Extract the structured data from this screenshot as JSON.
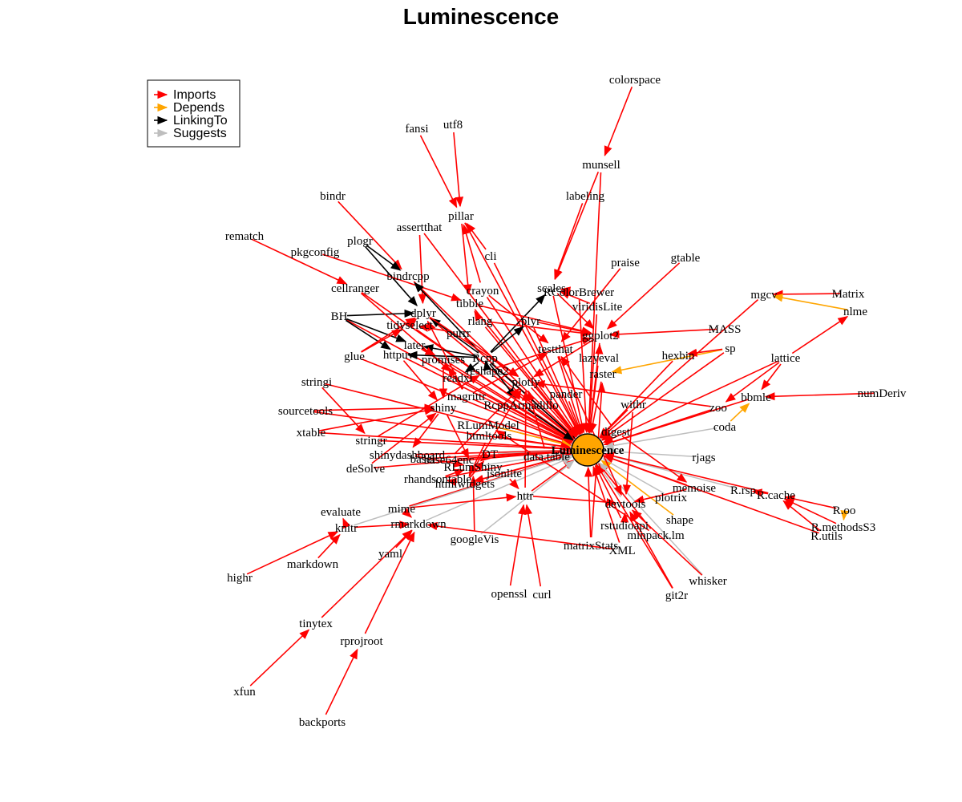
{
  "title": "Luminescence",
  "center": "Luminescence",
  "legend": [
    {
      "label": "Imports",
      "color": "#ff0000"
    },
    {
      "label": "Depends",
      "color": "#ffa500"
    },
    {
      "label": "LinkingTo",
      "color": "#000000"
    },
    {
      "label": "Suggests",
      "color": "#bebebe"
    }
  ],
  "nodes": [
    "colorspace",
    "munsell",
    "labeling",
    "fansi",
    "utf8",
    "pillar",
    "bindr",
    "assertthat",
    "cli",
    "rematch",
    "plogr",
    "pkgconfig",
    "bindrcpp",
    "praise",
    "gtable",
    "cellranger",
    "crayon",
    "scales",
    "RColorBrewer",
    "viridisLite",
    "tibble",
    "dplyr",
    "mgcv",
    "Matrix",
    "BH",
    "tidyselect",
    "rlang",
    "plyr",
    "ggplot2",
    "MASS",
    "nlme",
    "purrr",
    "glue",
    "httpuv",
    "later",
    "testthat",
    "sp",
    "lattice",
    "hexbin",
    "promises",
    "Rcpp",
    "lazyeval",
    "raster",
    "stringi",
    "readxl",
    "reshape2",
    "plotly",
    "pander",
    "bbmle",
    "numDeriv",
    "magrittr",
    "sourcetools",
    "shiny",
    "RcppArmadillo",
    "withr",
    "zoo",
    "xtable",
    "RLumModel",
    "htmltools",
    "digest",
    "coda",
    "stringr",
    "shinydashboard",
    "DT",
    "basel",
    "base64enc",
    "data.table",
    "rjags",
    "deSolve",
    "RLumShiny",
    "jsonlite",
    "rhandsontable",
    "htmlwidgets",
    "memoise",
    "R.rsp",
    "R.cache",
    "httr",
    "plotrix",
    "evaluate",
    "devtools",
    "mime",
    "R.oo",
    "knitr",
    "rmarkdown",
    "shape",
    "R.methodsS3",
    "R.utils",
    "rstudioapi",
    "minpack.lm",
    "googleVis",
    "yaml",
    "markdown",
    "matrixStats",
    "XML",
    "highr",
    "whisker",
    "openssl",
    "curl",
    "git2r",
    "tinytex",
    "rprojroot",
    "xfun",
    "backports"
  ]
}
